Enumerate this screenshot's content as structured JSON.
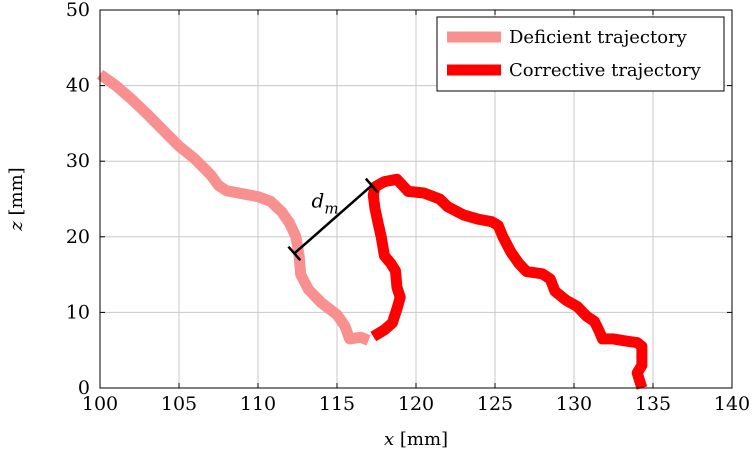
{
  "chart_data": {
    "type": "line",
    "xlabel_var": "x",
    "xlabel_unit": " [mm]",
    "ylabel_var": "z",
    "ylabel_unit": " [mm]",
    "xlim": [
      100,
      140
    ],
    "ylim": [
      0,
      50
    ],
    "xticks": [
      100,
      105,
      110,
      115,
      120,
      125,
      130,
      135,
      140
    ],
    "yticks": [
      0,
      10,
      20,
      30,
      40,
      50
    ],
    "grid": true,
    "legend_position": "top-right",
    "series": [
      {
        "name": "Deficient trajectory",
        "color": "#f99090",
        "points": [
          [
            100.0,
            41.5
          ],
          [
            101.0,
            40.0
          ],
          [
            102.0,
            38.2
          ],
          [
            103.0,
            36.2
          ],
          [
            104.0,
            34.1
          ],
          [
            105.0,
            32.0
          ],
          [
            106.0,
            30.3
          ],
          [
            107.0,
            28.2
          ],
          [
            107.5,
            26.8
          ],
          [
            108.0,
            26.1
          ],
          [
            109.0,
            25.7
          ],
          [
            110.0,
            25.3
          ],
          [
            110.8,
            24.7
          ],
          [
            111.5,
            23.3
          ],
          [
            112.0,
            21.8
          ],
          [
            112.4,
            20.0
          ],
          [
            112.6,
            17.5
          ],
          [
            112.7,
            15.0
          ],
          [
            113.2,
            13.0
          ],
          [
            114.0,
            11.3
          ],
          [
            115.0,
            9.7
          ],
          [
            115.5,
            8.2
          ],
          [
            115.8,
            6.5
          ],
          [
            116.5,
            6.7
          ],
          [
            117.0,
            6.3
          ]
        ]
      },
      {
        "name": "Corrective trajectory",
        "color": "#ff0000",
        "points": [
          [
            117.3,
            6.8
          ],
          [
            118.0,
            7.7
          ],
          [
            118.5,
            8.6
          ],
          [
            118.8,
            10.5
          ],
          [
            119.0,
            12.0
          ],
          [
            118.8,
            13.3
          ],
          [
            118.7,
            15.5
          ],
          [
            118.4,
            16.5
          ],
          [
            118.0,
            17.5
          ],
          [
            117.8,
            20.0
          ],
          [
            117.6,
            21.8
          ],
          [
            117.4,
            23.8
          ],
          [
            117.3,
            25.5
          ],
          [
            117.4,
            26.6
          ],
          [
            118.0,
            27.3
          ],
          [
            118.8,
            27.6
          ],
          [
            119.5,
            26.0
          ],
          [
            120.5,
            25.8
          ],
          [
            121.5,
            25.0
          ],
          [
            122.0,
            24.0
          ],
          [
            123.0,
            22.9
          ],
          [
            124.0,
            22.3
          ],
          [
            124.8,
            22.0
          ],
          [
            125.2,
            21.5
          ],
          [
            125.5,
            20.0
          ],
          [
            126.0,
            18.0
          ],
          [
            126.5,
            16.5
          ],
          [
            127.0,
            15.4
          ],
          [
            128.0,
            15.1
          ],
          [
            128.5,
            14.4
          ],
          [
            128.8,
            12.8
          ],
          [
            129.5,
            11.6
          ],
          [
            130.2,
            10.8
          ],
          [
            130.8,
            9.5
          ],
          [
            131.3,
            8.8
          ],
          [
            131.6,
            7.5
          ],
          [
            131.8,
            6.5
          ],
          [
            132.5,
            6.5
          ],
          [
            133.3,
            6.2
          ],
          [
            134.0,
            6.0
          ],
          [
            134.3,
            5.5
          ],
          [
            134.3,
            3.0
          ],
          [
            134.0,
            2.0
          ],
          [
            134.3,
            0.0
          ]
        ]
      }
    ],
    "annotation": {
      "label_base": "d",
      "label_sub": "m",
      "from": [
        112.3,
        17.8
      ],
      "to": [
        117.2,
        26.8
      ]
    }
  }
}
